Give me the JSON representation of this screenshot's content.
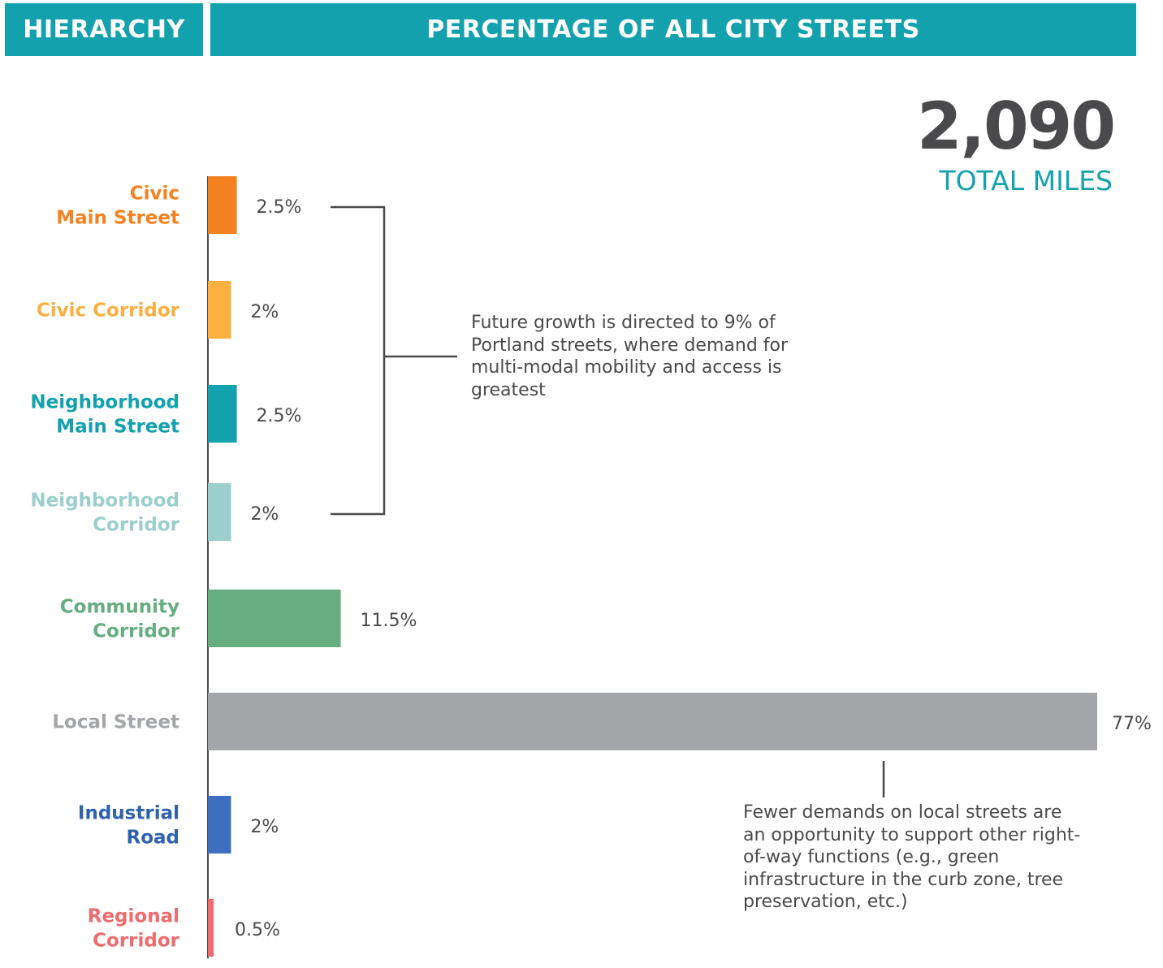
{
  "header": {
    "left_label": "HIERARCHY",
    "right_label": "PERCENTAGE OF ALL CITY STREETS"
  },
  "total": {
    "value": "2,090",
    "label": "TOTAL MILES"
  },
  "chart_data": {
    "type": "bar",
    "orientation": "horizontal",
    "categories": [
      [
        "Civic",
        "Main Street"
      ],
      [
        "Civic Corridor"
      ],
      [
        "Neighborhood",
        "Main Street"
      ],
      [
        "Neighborhood",
        "Corridor"
      ],
      [
        "Community",
        "Corridor"
      ],
      [
        "Local Street"
      ],
      [
        "Industrial",
        "Road"
      ],
      [
        "Regional",
        "Corridor"
      ]
    ],
    "values": [
      2.5,
      2,
      2.5,
      2,
      11.5,
      77,
      2,
      0.5
    ],
    "value_labels": [
      "2.5%",
      "2%",
      "2.5%",
      "2%",
      "11.5%",
      "77%",
      "2%",
      "0.5%"
    ],
    "colors": [
      "#f58220",
      "#fbb040",
      "#13a2ad",
      "#9bcfcd",
      "#66ad80",
      "#a4a5a8",
      "#3f6fbf",
      "#ee6b6e"
    ],
    "label_colors": [
      "#f58220",
      "#fbb040",
      "#13a2ad",
      "#9bcfcd",
      "#66ad80",
      "#a4a5a8",
      "#2e62ad",
      "#ee6b6e"
    ],
    "xlim": [
      0,
      77
    ],
    "annotations": [
      "Future growth is directed to 9% of Portland streets, where demand for multi-modal mobility and access is greatest",
      "Fewer demands on local streets are an opportunity to support other right-of-way functions (e.g., green infrastructure in the curb zone, tree preservation, etc.)"
    ]
  }
}
